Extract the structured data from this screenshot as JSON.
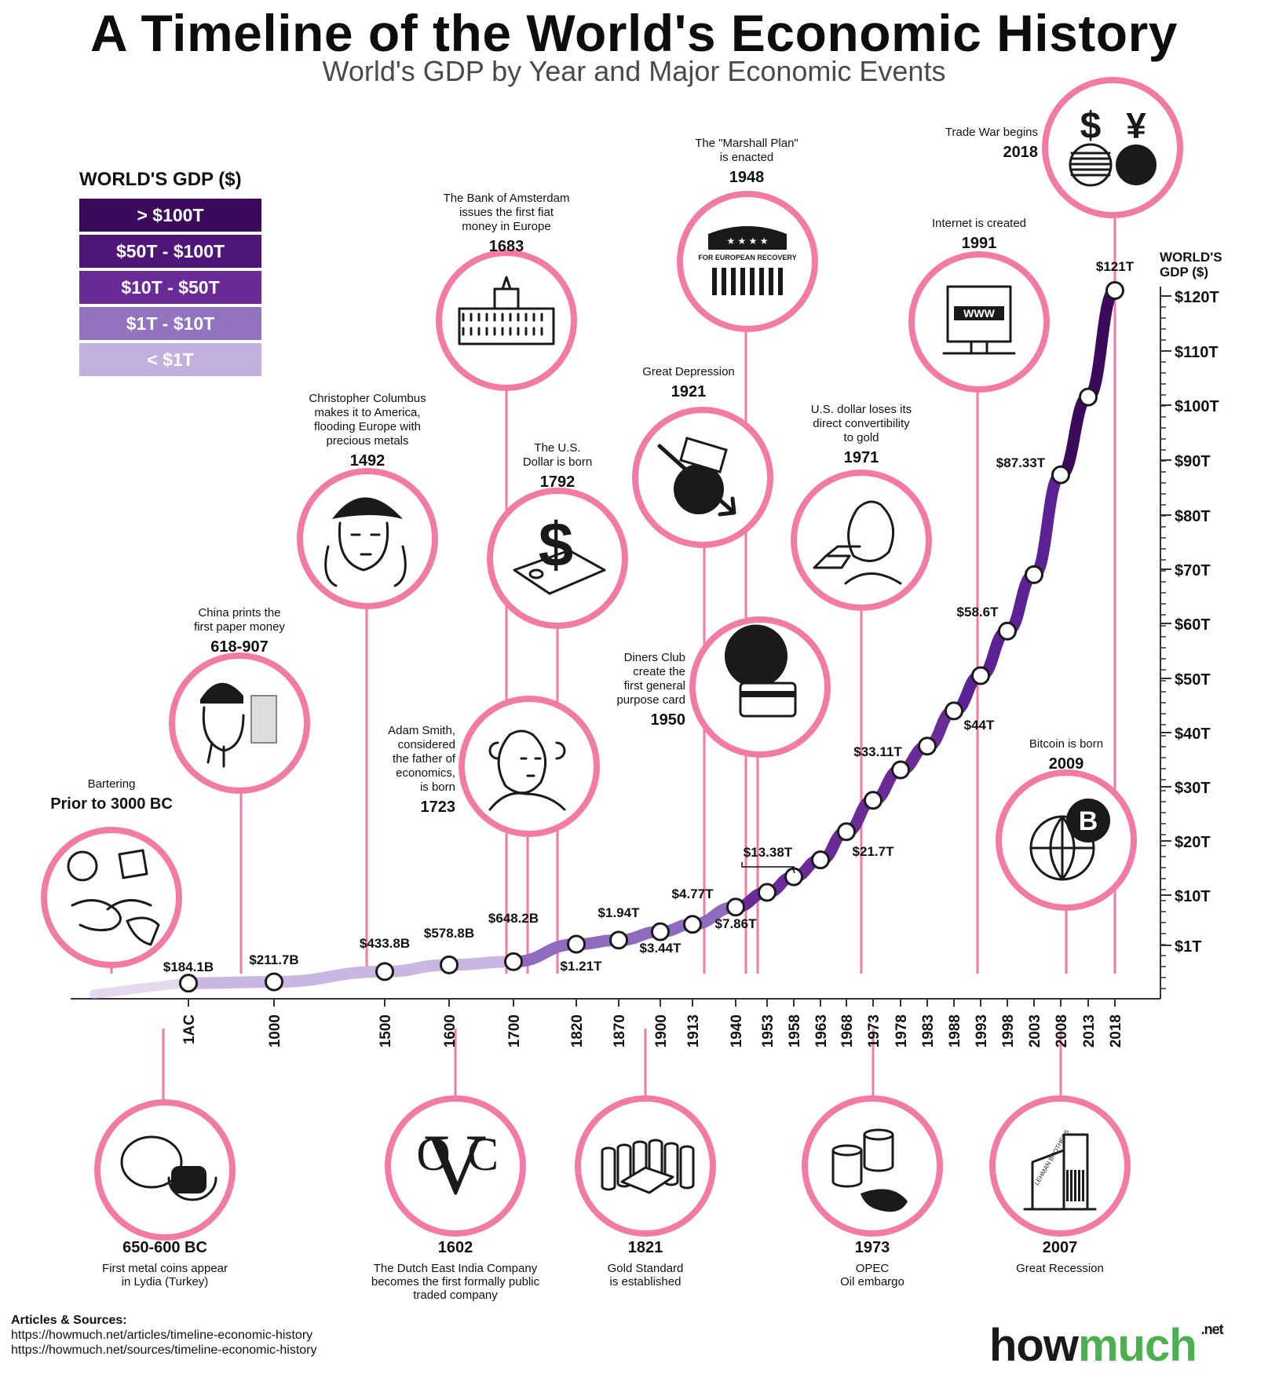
{
  "title": "A Timeline of the World's Economic History",
  "subtitle": "World's GDP by Year and Major Economic Events",
  "legend": {
    "title": "WORLD'S GDP ($)",
    "items": [
      {
        "label": "> $100T",
        "color": "#3b0a5a"
      },
      {
        "label": "$50T - $100T",
        "color": "#4f1577"
      },
      {
        "label": "$10T - $50T",
        "color": "#6a2b96"
      },
      {
        "label": "$1T - $10T",
        "color": "#9273bd"
      },
      {
        "label": "< $1T",
        "color": "#c4b0dd"
      }
    ]
  },
  "colors": {
    "circle_ring": "#f27ba6",
    "line_low": "#c9b6e2",
    "line_mid": "#8e6bbf",
    "line_high": "#5a2293",
    "line_top": "#3b0a5a",
    "axis": "#333333"
  },
  "chart_data": {
    "type": "line",
    "ylabel": "WORLD'S GDP ($)",
    "y_ticks": [
      "$1T",
      "$10T",
      "$20T",
      "$30T",
      "$40T",
      "$50T",
      "$60T",
      "$70T",
      "$80T",
      "$90T",
      "$100T",
      "$110T",
      "$120T"
    ],
    "x_ticks": [
      "1AC",
      "1000",
      "1500",
      "1600",
      "1700",
      "1820",
      "1870",
      "1900",
      "1913",
      "1940",
      "1953",
      "1958",
      "1963",
      "1968",
      "1973",
      "1978",
      "1983",
      "1988",
      "1993",
      "1998",
      "2003",
      "2008",
      "2013",
      "2018"
    ],
    "series": [
      {
        "values_trillions": [
          0.1841,
          0.2117,
          0.4338,
          0.5788,
          0.6482,
          1.21,
          1.94,
          3.44,
          4.77,
          7.86,
          10.5,
          13.38,
          16.5,
          21.7,
          27.5,
          33.11,
          37.5,
          44,
          50.5,
          58.6,
          69,
          87.33,
          101.5,
          121
        ]
      }
    ],
    "point_labels": [
      {
        "label": "$184.1B",
        "index": 0
      },
      {
        "label": "$211.7B",
        "index": 1
      },
      {
        "label": "$433.8B",
        "index": 2
      },
      {
        "label": "$578.8B",
        "index": 3
      },
      {
        "label": "$648.2B",
        "index": 4
      },
      {
        "label": "$1.21T",
        "index": 5
      },
      {
        "label": "$1.94T",
        "index": 6
      },
      {
        "label": "$3.44T",
        "index": 7
      },
      {
        "label": "$4.77T",
        "index": 8
      },
      {
        "label": "$7.86T",
        "index": 9
      },
      {
        "label": "$13.38T",
        "index": 11
      },
      {
        "label": "$21.7T",
        "index": 13
      },
      {
        "label": "$33.11T",
        "index": 15
      },
      {
        "label": "$44T",
        "index": 17
      },
      {
        "label": "$58.6T",
        "index": 19
      },
      {
        "label": "$87.33T",
        "index": 21
      },
      {
        "label": "$121T",
        "index": 23
      }
    ]
  },
  "events_top": [
    {
      "id": "bartering",
      "text": [
        "Bartering"
      ],
      "year": "Prior to 3000 BC",
      "icon": "handshake-barter-icon"
    },
    {
      "id": "china-paper",
      "text": [
        "China prints the",
        "first paper money"
      ],
      "year": "618-907",
      "icon": "chinese-emperor-icon"
    },
    {
      "id": "columbus",
      "text": [
        "Christopher Columbus",
        "makes it to America,",
        "flooding Europe with",
        "precious metals"
      ],
      "year": "1492",
      "icon": "columbus-portrait-icon"
    },
    {
      "id": "amsterdam",
      "text": [
        "The Bank of Amsterdam",
        "issues the first fiat",
        "money in Europe"
      ],
      "year": "1683",
      "icon": "bank-building-icon"
    },
    {
      "id": "usd",
      "text": [
        "The U.S.",
        "Dollar is born"
      ],
      "year": "1792",
      "icon": "dollar-bill-icon"
    },
    {
      "id": "adam-smith",
      "text": [
        "Adam Smith,",
        "considered",
        "the father of",
        "economics,",
        "is born"
      ],
      "year": "1723",
      "icon": "adam-smith-portrait-icon"
    },
    {
      "id": "depression",
      "text": [
        "Great Depression"
      ],
      "year": "1921",
      "icon": "falling-bank-globe-icon"
    },
    {
      "id": "marshall",
      "text": [
        "The \"Marshall Plan\"",
        "is enacted"
      ],
      "year": "1948",
      "icon": "marshall-plan-shield-icon"
    },
    {
      "id": "diners",
      "text": [
        "Diners Club",
        "create the",
        "first general",
        "purpose card"
      ],
      "year": "1950",
      "icon": "credit-card-icon"
    },
    {
      "id": "gold-usd",
      "text": [
        "U.S. dollar loses its",
        "direct convertibility",
        "to gold"
      ],
      "year": "1971",
      "icon": "nixon-gold-bars-icon"
    },
    {
      "id": "internet",
      "text": [
        "Internet is created"
      ],
      "year": "1991",
      "icon": "www-computer-icon"
    },
    {
      "id": "trade-war",
      "text": [
        "Trade War begins"
      ],
      "year": "2018",
      "icon": "us-china-flags-icon"
    },
    {
      "id": "bitcoin",
      "text": [
        "Bitcoin is born"
      ],
      "year": "2009",
      "icon": "bitcoin-globe-icon"
    }
  ],
  "events_bottom": [
    {
      "id": "coins",
      "year": "650-600 BC",
      "text": [
        "First metal coins appear",
        "in Lydia (Turkey)"
      ],
      "icon": "lydian-coins-icon"
    },
    {
      "id": "voc",
      "year": "1602",
      "text": [
        "The Dutch East India Company",
        "becomes the first formally public",
        "traded company"
      ],
      "icon": "voc-logo-icon",
      "logo_text": "VOC"
    },
    {
      "id": "gold-standard",
      "year": "1821",
      "text": [
        "Gold Standard",
        "is established"
      ],
      "icon": "gold-bars-coins-icon"
    },
    {
      "id": "opec",
      "year": "1973",
      "text": [
        "OPEC",
        "Oil embargo"
      ],
      "icon": "oil-barrels-icon"
    },
    {
      "id": "recession",
      "year": "2007",
      "text": [
        "Great Recession"
      ],
      "icon": "lehman-brothers-building-icon"
    }
  ],
  "sources": {
    "heading": "Articles & Sources:",
    "lines": [
      "https://howmuch.net/articles/timeline-economic-history",
      "https://howmuch.net/sources/timeline-economic-history"
    ]
  },
  "brand": {
    "how": "how",
    "much": "much",
    "net": ".net"
  }
}
